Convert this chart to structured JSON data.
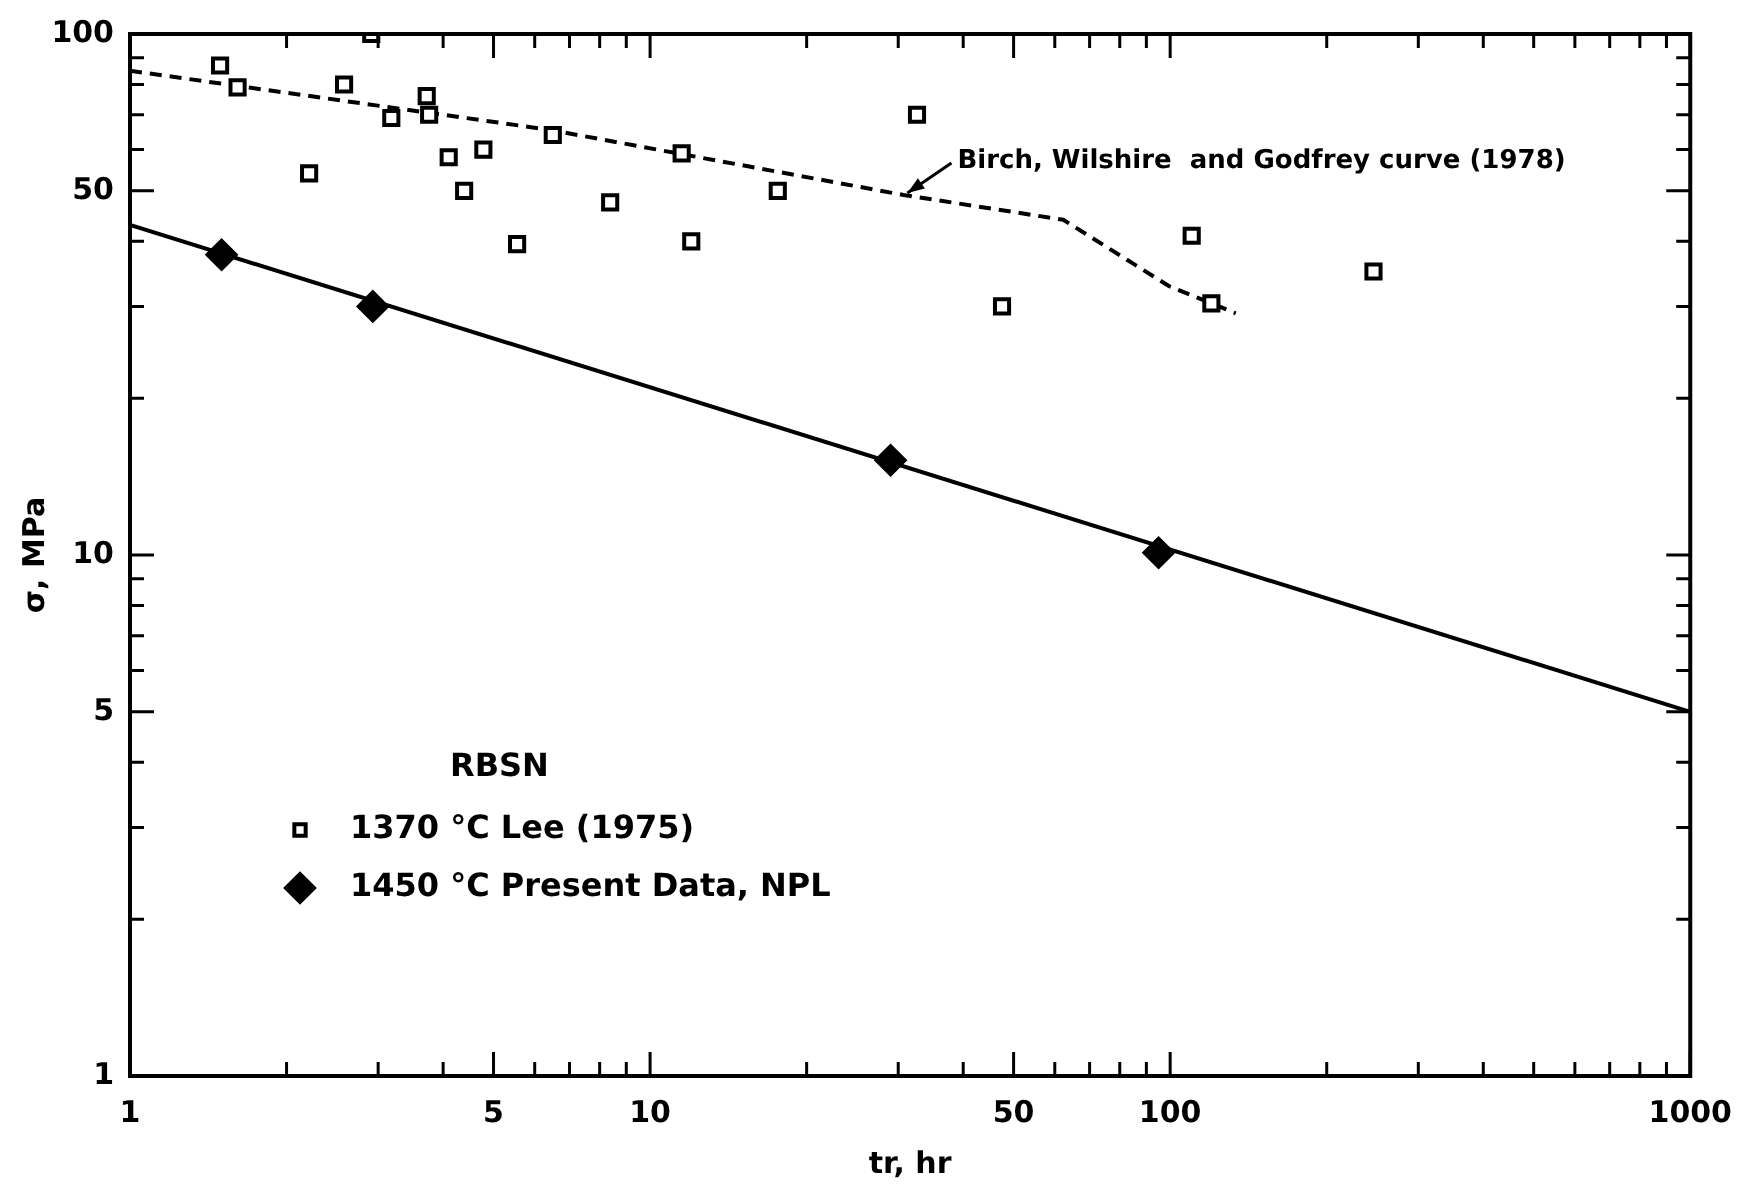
{
  "chart_data": {
    "type": "scatter",
    "xlabel": "tr, hr",
    "ylabel": "σ, MPa",
    "legend_title": "RBSN",
    "log": "xy",
    "grid": false,
    "legend": "bottom left",
    "xlim": [
      1,
      1000
    ],
    "ylim": [
      1,
      100
    ],
    "xticks": [
      1,
      {
        "value": 2,
        "label": null
      },
      {
        "value": 3,
        "label": null
      },
      {
        "value": 4,
        "label": null
      },
      5,
      {
        "value": 6,
        "label": null
      },
      {
        "value": 7,
        "label": null
      },
      {
        "value": 8,
        "label": null
      },
      {
        "value": 9,
        "label": null
      },
      10,
      {
        "value": 20,
        "label": null
      },
      {
        "value": 30,
        "label": null
      },
      {
        "value": 40,
        "label": null
      },
      50,
      {
        "value": 60,
        "label": null
      },
      {
        "value": 70,
        "label": null
      },
      {
        "value": 80,
        "label": null
      },
      {
        "value": 90,
        "label": null
      },
      100,
      {
        "value": 200,
        "label": null
      },
      {
        "value": 300,
        "label": null
      },
      {
        "value": 400,
        "label": null
      },
      {
        "value": 500,
        "label": null
      },
      {
        "value": 600,
        "label": null
      },
      {
        "value": 700,
        "label": null
      },
      {
        "value": 800,
        "label": null
      },
      {
        "value": 900,
        "label": null
      },
      1000
    ],
    "yticks": [
      1,
      {
        "value": 2,
        "label": null
      },
      {
        "value": 3,
        "label": null
      },
      {
        "value": 4,
        "label": null
      },
      5,
      {
        "value": 6,
        "label": null
      },
      {
        "value": 7,
        "label": null
      },
      {
        "value": 8,
        "label": null
      },
      {
        "value": 9,
        "label": null
      },
      10,
      {
        "value": 20,
        "label": null
      },
      {
        "value": 30,
        "label": null
      },
      {
        "value": 40,
        "label": null
      },
      50,
      {
        "value": 60,
        "label": null
      },
      {
        "value": 70,
        "label": null
      },
      {
        "value": 80,
        "label": null
      },
      {
        "value": 90,
        "label": null
      },
      100
    ],
    "series": [
      {
        "name": "1370 °C Lee (1975)",
        "marker": "square",
        "color": "#000000",
        "x": [
          1.49,
          1.61,
          2.91,
          2.21,
          2.58,
          3.18,
          3.72,
          3.76,
          4.1,
          4.39,
          4.78,
          5.55,
          6.5,
          8.38,
          11.5,
          12,
          17.6,
          32.6,
          47.5,
          110,
          120,
          246
        ],
        "values": [
          87,
          79,
          100,
          54,
          80,
          69,
          76,
          70,
          58,
          50,
          60,
          39.5,
          64,
          47.5,
          59,
          40,
          50,
          70,
          30,
          41,
          30.4,
          35
        ]
      },
      {
        "name": "1450 °C Present Data, NPL",
        "marker": "diamond",
        "color": "#000000",
        "x": [
          1.5,
          2.93,
          29,
          95
        ],
        "values": [
          37.7,
          30,
          15.2,
          10.1
        ]
      },
      {
        "type": "line",
        "marker": "none",
        "line_style": "solid",
        "color": "#000000",
        "x": [
          1,
          1000
        ],
        "values": [
          43,
          5
        ]
      },
      {
        "type": "line",
        "marker": "none",
        "line_style": "dashed",
        "color": "#000000",
        "x": [
          1,
          6.4,
          30.7,
          62.3,
          99.6,
          133.7
        ],
        "values": [
          85,
          65.5,
          49.1,
          44,
          32.8,
          29.1
        ]
      }
    ],
    "annotations": [
      {
        "text": "Birch, Wilshire  and Godfrey curve (1978)",
        "x": 30.7,
        "y": 49.1
      }
    ]
  }
}
